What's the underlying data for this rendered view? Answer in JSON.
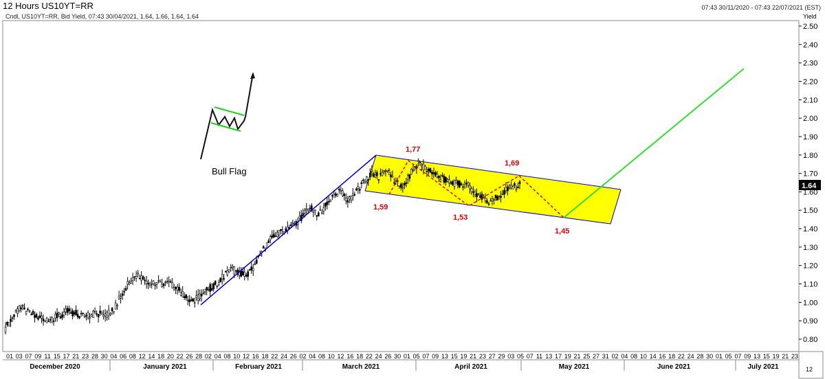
{
  "header": {
    "title": "12 Hours US10YT=RR",
    "subtitle": "Cndl, US10YT=RR, Bid Yield, 07:43 30/04/2021, 1.64, 1.66, 1.64, 1.64",
    "range": "07:43 30/11/2020 - 07:43 22/07/2021 (EST)"
  },
  "chart_data": {
    "type": "candlestick",
    "y_axis_label": "Yield",
    "ylim": [
      0.75,
      2.55
    ],
    "y_ticks": [
      "2.50",
      "2.40",
      "2.30",
      "2.20",
      "2.10",
      "2.00",
      "1.90",
      "1.80",
      "1.70",
      "1.60",
      "1.50",
      "1.40",
      "1.30",
      "1.20",
      "1.10",
      "1.00",
      "0.90",
      "0.80"
    ],
    "last_price": "1.64",
    "x_day_ticks": [
      "01",
      "03",
      "07",
      "09",
      "11",
      "15",
      "17",
      "21",
      "23",
      "28",
      "30",
      "04",
      "06",
      "08",
      "12",
      "14",
      "18",
      "20",
      "22",
      "26",
      "28",
      "02",
      "04",
      "08",
      "10",
      "12",
      "16",
      "18",
      "22",
      "24",
      "26",
      "02",
      "04",
      "08",
      "10",
      "12",
      "16",
      "18",
      "22",
      "24",
      "26",
      "30",
      "01",
      "05",
      "07",
      "09",
      "13",
      "15",
      "19",
      "21",
      "23",
      "27",
      "29",
      "03",
      "05",
      "07",
      "11",
      "13",
      "17",
      "19",
      "21",
      "25",
      "27",
      "31",
      "02",
      "04",
      "08",
      "10",
      "14",
      "16",
      "18",
      "22",
      "24",
      "28",
      "30",
      "01",
      "05",
      "07",
      "09",
      "13",
      "15",
      "19",
      "21",
      "23"
    ],
    "x_month_labels": [
      "December 2020",
      "January 2021",
      "February 2021",
      "March 2021",
      "April 2021",
      "May 2021",
      "June 2021",
      "July 2021"
    ],
    "close_path": [
      0.86,
      0.93,
      0.97,
      0.94,
      0.93,
      0.9,
      0.91,
      0.93,
      0.95,
      0.94,
      0.93,
      0.93,
      0.94,
      0.93,
      0.97,
      1.05,
      1.12,
      1.15,
      1.12,
      1.1,
      1.1,
      1.1,
      1.08,
      1.03,
      1.0,
      1.04,
      1.07,
      1.1,
      1.14,
      1.18,
      1.16,
      1.15,
      1.2,
      1.28,
      1.34,
      1.37,
      1.4,
      1.42,
      1.46,
      1.52,
      1.47,
      1.52,
      1.58,
      1.6,
      1.55,
      1.6,
      1.65,
      1.7,
      1.68,
      1.72,
      1.66,
      1.62,
      1.7,
      1.76,
      1.72,
      1.7,
      1.67,
      1.66,
      1.64,
      1.65,
      1.6,
      1.58,
      1.55,
      1.57,
      1.6,
      1.62,
      1.64
    ],
    "annotations": [
      "1,77",
      "1,69",
      "1,59",
      "1,53",
      "1,45"
    ],
    "callout_label": "Bull Flag",
    "colors": {
      "channel_fill": "#ffff00",
      "trend_line": "#0000cc",
      "projection": "#33dd33",
      "zigzag": "#e00000",
      "candle": "#000000"
    }
  }
}
